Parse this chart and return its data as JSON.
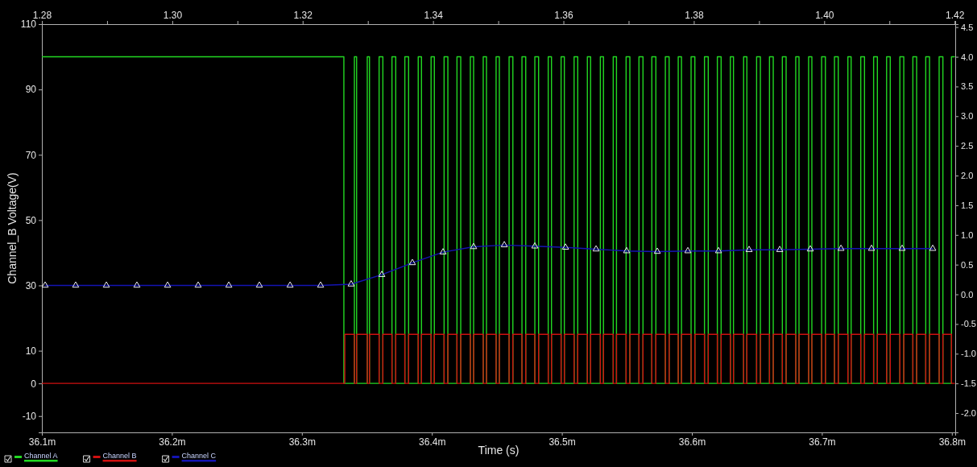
{
  "chart_data": {
    "type": "line",
    "xlabel": "Time (s)",
    "ylabel": "Channel_B Voltage(V)",
    "legend": "bottom left",
    "xlim": [
      36.1,
      36.8026
    ],
    "xticks": [
      {
        "value": 36.1,
        "label": "36.1m"
      },
      {
        "value": 36.2,
        "label": "36.2m"
      },
      {
        "value": 36.3,
        "label": "36.3m"
      },
      {
        "value": 36.4,
        "label": "36.4m"
      },
      {
        "value": 36.5,
        "label": "36.5m"
      },
      {
        "value": 36.6,
        "label": "36.6m"
      },
      {
        "value": 36.7,
        "label": "36.7m"
      },
      {
        "value": 36.8,
        "label": "36.8m"
      }
    ],
    "x2lim": [
      1.28,
      1.4201
    ],
    "x2ticks": [
      1.28,
      {
        "value": 1.29,
        "label": null
      },
      {
        "value": 1.3,
        "label": "1.30"
      },
      {
        "value": 1.31,
        "label": null
      },
      1.32,
      {
        "value": 1.33,
        "label": null
      },
      1.34,
      {
        "value": 1.35,
        "label": null
      },
      1.36,
      {
        "value": 1.37,
        "label": null
      },
      1.38,
      {
        "value": 1.39,
        "label": null
      },
      {
        "value": 1.4,
        "label": "1.40"
      },
      {
        "value": 1.41,
        "label": null
      },
      1.42
    ],
    "ylim": [
      -15,
      110
    ],
    "yticks": [
      -10,
      0,
      10,
      30,
      50,
      70,
      90,
      110
    ],
    "y2lim": [
      -2.325,
      4.55
    ],
    "y2ticks": [
      {
        "value": -2,
        "label": "-2.0"
      },
      -1.5,
      {
        "value": -1,
        "label": "-1.0"
      },
      -0.5,
      {
        "value": 0,
        "label": "0.0"
      },
      0.5,
      {
        "value": 1,
        "label": "1.0"
      },
      1.5,
      {
        "value": 2,
        "label": "2.0"
      },
      2.5,
      {
        "value": 3,
        "label": "3.0"
      },
      3.5,
      {
        "value": 4,
        "label": "4.0"
      },
      4.5
    ],
    "series": [
      {
        "name": "Channel A",
        "color": "#22d822",
        "x": [
          36.1,
          36.3323,
          36.3323,
          36.3404,
          36.3404,
          36.3421,
          36.3421,
          36.3503,
          36.3503,
          36.352,
          36.352,
          36.3594,
          36.3594,
          36.3623,
          36.3623,
          36.3693,
          36.3693,
          36.3722,
          36.3722,
          36.3792,
          36.3792,
          36.3821,
          36.3821,
          36.3895,
          36.3895,
          36.392,
          36.392,
          36.3994,
          36.3994,
          36.4019,
          36.4019,
          36.4094,
          36.4094,
          36.4123,
          36.4123,
          36.4193,
          36.4193,
          36.4222,
          36.4222,
          36.4296,
          36.4296,
          36.4321,
          36.4321,
          36.4395,
          36.4395,
          36.442,
          36.442,
          36.4494,
          36.4494,
          36.4519,
          36.4519,
          36.4594,
          36.4594,
          36.4623,
          36.4623,
          36.4693,
          36.4693,
          36.4722,
          36.4722,
          36.4792,
          36.4792,
          36.4821,
          36.4821,
          36.4895,
          36.4895,
          36.492,
          36.492,
          36.4994,
          36.4994,
          36.5019,
          36.5019,
          36.5094,
          36.5094,
          36.5122,
          36.5122,
          36.5196,
          36.5196,
          36.5221,
          36.5221,
          36.5296,
          36.5296,
          36.532,
          36.532,
          36.5395,
          36.5395,
          36.542,
          36.542,
          36.5494,
          36.5494,
          36.5523,
          36.5523,
          36.5593,
          36.5593,
          36.5624,
          36.5624,
          36.5692,
          36.5692,
          36.5723,
          36.5723,
          36.5796,
          36.5796,
          36.5825,
          36.5825,
          36.5895,
          36.5895,
          36.592,
          36.592,
          36.5994,
          36.5994,
          36.6023,
          36.6023,
          36.6097,
          36.6097,
          36.6126,
          36.6126,
          36.6196,
          36.6196,
          36.6225,
          36.6225,
          36.6296,
          36.6296,
          36.632,
          36.632,
          36.6398,
          36.6398,
          36.6423,
          36.6423,
          36.6498,
          36.6498,
          36.6527,
          36.6527,
          36.6597,
          36.6597,
          36.6626,
          36.6626,
          36.6696,
          36.6696,
          36.6725,
          36.6725,
          36.6799,
          36.6799,
          36.6824,
          36.6824,
          36.6898,
          36.6898,
          36.6923,
          36.6923,
          36.6998,
          36.6998,
          36.7027,
          36.7027,
          36.7097,
          36.7097,
          36.7126,
          36.7126,
          36.72,
          36.72,
          36.7225,
          36.7225,
          36.7299,
          36.7299,
          36.7328,
          36.7328,
          36.7398,
          36.7398,
          36.7427,
          36.7427,
          36.7498,
          36.7498,
          36.7526,
          36.7526,
          36.76,
          36.76,
          36.763,
          36.763,
          36.77,
          36.77,
          36.7729,
          36.7729,
          36.7799,
          36.7799,
          36.7828,
          36.7828,
          36.7902,
          36.7902,
          36.7931,
          36.7931,
          36.7997,
          36.7997,
          36.802
        ],
        "values": [
          100,
          100,
          0,
          0,
          100,
          100,
          0,
          0,
          100,
          100,
          0,
          0,
          100,
          100,
          0,
          0,
          100,
          100,
          0,
          0,
          100,
          100,
          0,
          0,
          100,
          100,
          0,
          0,
          100,
          100,
          0,
          0,
          100,
          100,
          0,
          0,
          100,
          100,
          0,
          0,
          100,
          100,
          0,
          0,
          100,
          100,
          0,
          0,
          100,
          100,
          0,
          0,
          100,
          100,
          0,
          0,
          100,
          100,
          0,
          0,
          100,
          100,
          0,
          0,
          100,
          100,
          0,
          0,
          100,
          100,
          0,
          0,
          100,
          100,
          0,
          0,
          100,
          100,
          0,
          0,
          100,
          100,
          0,
          0,
          100,
          100,
          0,
          0,
          100,
          100,
          0,
          0,
          100,
          100,
          0,
          0,
          100,
          100,
          0,
          0,
          100,
          100,
          0,
          0,
          100,
          100,
          0,
          0,
          100,
          100,
          0,
          0,
          100,
          100,
          0,
          0,
          100,
          100,
          0,
          0,
          100,
          100,
          0,
          0,
          100,
          100,
          0,
          0,
          100,
          100,
          0,
          0,
          100,
          100,
          0,
          0,
          100,
          100,
          0,
          0,
          100,
          100,
          0,
          0,
          100,
          100,
          0,
          0,
          100,
          100,
          0,
          0,
          100,
          100,
          0,
          0,
          100,
          100,
          0,
          0,
          100,
          100,
          0,
          0,
          100,
          100,
          0,
          0,
          100,
          100,
          0,
          0,
          100,
          100,
          0,
          0,
          100,
          100,
          0,
          0,
          100,
          100,
          0,
          0,
          100,
          100,
          0,
          0,
          100,
          100
        ]
      },
      {
        "name": "Channel B",
        "color": "#d01010",
        "x": [
          36.1,
          36.333,
          36.333,
          36.3404,
          36.3404,
          36.3421,
          36.3421,
          36.3503,
          36.3503,
          36.352,
          36.352,
          36.3594,
          36.3594,
          36.3623,
          36.3623,
          36.3693,
          36.3693,
          36.3722,
          36.3722,
          36.3792,
          36.3792,
          36.3821,
          36.3821,
          36.3895,
          36.3895,
          36.392,
          36.392,
          36.3994,
          36.3994,
          36.4019,
          36.4019,
          36.4094,
          36.4094,
          36.4123,
          36.4123,
          36.4193,
          36.4193,
          36.4222,
          36.4222,
          36.4296,
          36.4296,
          36.4321,
          36.4321,
          36.4395,
          36.4395,
          36.442,
          36.442,
          36.4494,
          36.4494,
          36.4519,
          36.4519,
          36.4594,
          36.4594,
          36.4623,
          36.4623,
          36.4693,
          36.4693,
          36.4722,
          36.4722,
          36.4792,
          36.4792,
          36.4821,
          36.4821,
          36.4895,
          36.4895,
          36.492,
          36.492,
          36.4994,
          36.4994,
          36.5019,
          36.5019,
          36.5094,
          36.5094,
          36.5122,
          36.5122,
          36.5196,
          36.5196,
          36.5221,
          36.5221,
          36.5296,
          36.5296,
          36.532,
          36.532,
          36.5395,
          36.5395,
          36.542,
          36.542,
          36.5494,
          36.5494,
          36.5523,
          36.5523,
          36.5593,
          36.5593,
          36.5624,
          36.5624,
          36.5692,
          36.5692,
          36.5723,
          36.5723,
          36.5796,
          36.5796,
          36.5825,
          36.5825,
          36.5895,
          36.5895,
          36.592,
          36.592,
          36.5994,
          36.5994,
          36.6023,
          36.6023,
          36.6097,
          36.6097,
          36.6126,
          36.6126,
          36.6196,
          36.6196,
          36.6225,
          36.6225,
          36.6296,
          36.6296,
          36.632,
          36.632,
          36.6398,
          36.6398,
          36.6423,
          36.6423,
          36.6498,
          36.6498,
          36.6527,
          36.6527,
          36.6597,
          36.6597,
          36.6626,
          36.6626,
          36.6696,
          36.6696,
          36.6725,
          36.6725,
          36.6799,
          36.6799,
          36.6824,
          36.6824,
          36.6898,
          36.6898,
          36.6923,
          36.6923,
          36.6998,
          36.6998,
          36.7027,
          36.7027,
          36.7097,
          36.7097,
          36.7126,
          36.7126,
          36.72,
          36.72,
          36.7225,
          36.7225,
          36.7299,
          36.7299,
          36.7328,
          36.7328,
          36.7398,
          36.7398,
          36.7427,
          36.7427,
          36.7498,
          36.7498,
          36.7526,
          36.7526,
          36.76,
          36.76,
          36.763,
          36.763,
          36.77,
          36.77,
          36.7729,
          36.7729,
          36.7799,
          36.7799,
          36.7828,
          36.7828,
          36.7902,
          36.7902,
          36.7931,
          36.7931,
          36.7997,
          36.7997,
          36.802
        ],
        "values": [
          0,
          0,
          15,
          15,
          0,
          0,
          15,
          15,
          0,
          0,
          15,
          15,
          0,
          0,
          15,
          15,
          0,
          0,
          15,
          15,
          0,
          0,
          15,
          15,
          0,
          0,
          15,
          15,
          0,
          0,
          15,
          15,
          0,
          0,
          15,
          15,
          0,
          0,
          15,
          15,
          0,
          0,
          15,
          15,
          0,
          0,
          15,
          15,
          0,
          0,
          15,
          15,
          0,
          0,
          15,
          15,
          0,
          0,
          15,
          15,
          0,
          0,
          15,
          15,
          0,
          0,
          15,
          15,
          0,
          0,
          15,
          15,
          0,
          0,
          15,
          15,
          0,
          0,
          15,
          15,
          0,
          0,
          15,
          15,
          0,
          0,
          15,
          15,
          0,
          0,
          15,
          15,
          0,
          0,
          15,
          15,
          0,
          0,
          15,
          15,
          0,
          0,
          15,
          15,
          0,
          0,
          15,
          15,
          0,
          0,
          15,
          15,
          0,
          0,
          15,
          15,
          0,
          0,
          15,
          15,
          0,
          0,
          15,
          15,
          0,
          0,
          15,
          15,
          0,
          0,
          15,
          15,
          0,
          0,
          15,
          15,
          0,
          0,
          15,
          15,
          0,
          0,
          15,
          15,
          0,
          0,
          15,
          15,
          0,
          0,
          15,
          15,
          0,
          0,
          15,
          15,
          0,
          0,
          15,
          15,
          0,
          0,
          15,
          15,
          0,
          0,
          15,
          15,
          0,
          0,
          15,
          15,
          0,
          0,
          15,
          15,
          0,
          0,
          15,
          15,
          0,
          0,
          15,
          15,
          0,
          0,
          15,
          15,
          0,
          0
        ]
      },
      {
        "name": "Channel C",
        "color": "#1414b4",
        "axis": "y2",
        "marker": "triangle",
        "x": [
          36.1025,
          36.126,
          36.1496,
          36.1731,
          36.1967,
          36.2202,
          36.2438,
          36.2673,
          36.2909,
          36.3144,
          36.3379,
          36.3615,
          36.385,
          36.4086,
          36.4321,
          36.4557,
          36.4792,
          36.5028,
          36.5263,
          36.5498,
          36.5734,
          36.5969,
          36.6205,
          36.644,
          36.6676,
          36.6911,
          36.7147,
          36.7382,
          36.7617,
          36.7853
        ],
        "values": [
          0.15,
          0.15,
          0.15,
          0.15,
          0.15,
          0.15,
          0.15,
          0.15,
          0.15,
          0.15,
          0.17,
          0.33,
          0.53,
          0.71,
          0.8,
          0.83,
          0.81,
          0.79,
          0.76,
          0.73,
          0.72,
          0.73,
          0.73,
          0.75,
          0.75,
          0.76,
          0.77,
          0.77,
          0.77,
          0.77
        ]
      }
    ]
  }
}
